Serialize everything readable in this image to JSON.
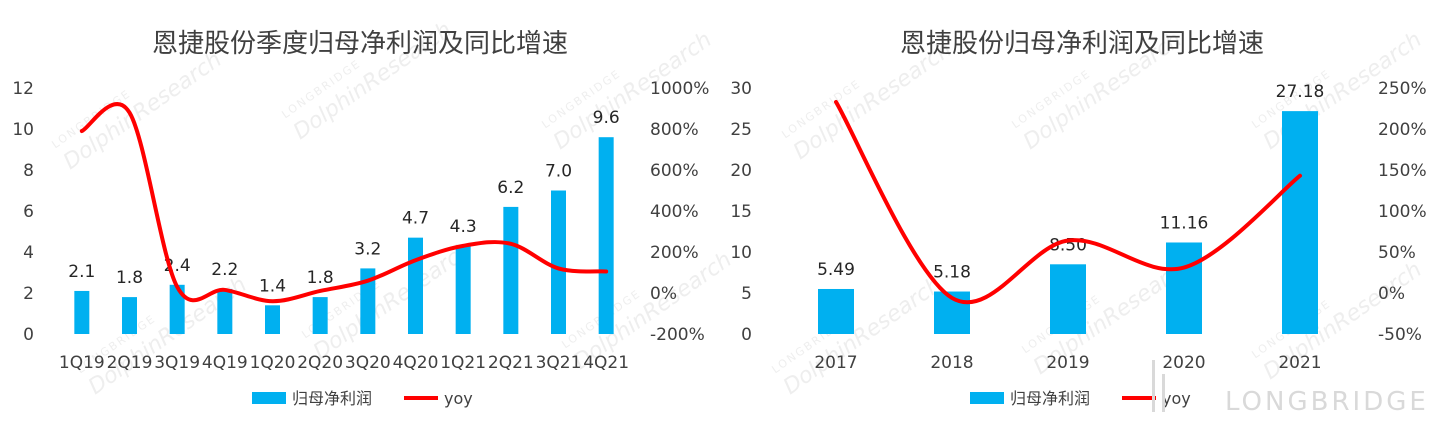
{
  "watermark": {
    "text_small": "LONGBRIDGE",
    "text_large": "DolphinResearch",
    "brand": "LONGBRIDGE"
  },
  "chart_data": [
    {
      "type": "bar",
      "title": "恩捷股份季度归母净利润及同比增速",
      "categories": [
        "1Q19",
        "2Q19",
        "3Q19",
        "4Q19",
        "1Q20",
        "2Q20",
        "3Q20",
        "4Q20",
        "1Q21",
        "2Q21",
        "3Q21",
        "4Q21"
      ],
      "series": [
        {
          "name": "归母净利润",
          "type": "bar",
          "axis": "left",
          "color": "#00B0F0",
          "values": [
            2.1,
            1.8,
            2.4,
            2.2,
            1.4,
            1.8,
            3.2,
            4.7,
            4.3,
            6.2,
            7.0,
            9.6
          ],
          "labels": [
            "2.1",
            "1.8",
            "2.4",
            "2.2",
            "1.4",
            "1.8",
            "3.2",
            "4.7",
            "4.3",
            "6.2",
            "7.0",
            "9.6"
          ]
        },
        {
          "name": "yoy",
          "type": "line",
          "axis": "right",
          "color": "#FF0000",
          "values": [
            790,
            880,
            30,
            15,
            -40,
            10,
            60,
            160,
            230,
            240,
            120,
            105
          ]
        }
      ],
      "ylim_left": [
        0,
        12
      ],
      "yticks_left": [
        "0",
        "2",
        "4",
        "6",
        "8",
        "10",
        "12"
      ],
      "ylim_right": [
        -200,
        1000
      ],
      "yticks_right": [
        "-200%",
        "0%",
        "200%",
        "400%",
        "600%",
        "800%",
        "1000%"
      ],
      "legend": "bottom"
    },
    {
      "type": "bar",
      "title": "恩捷股份归母净利润及同比增速",
      "categories": [
        "2017",
        "2018",
        "2019",
        "2020",
        "2021"
      ],
      "series": [
        {
          "name": "归母净利润",
          "type": "bar",
          "axis": "left",
          "color": "#00B0F0",
          "values": [
            5.49,
            5.18,
            8.5,
            11.16,
            27.18
          ],
          "labels": [
            "5.49",
            "5.18",
            "8.50",
            "11.16",
            "27.18"
          ]
        },
        {
          "name": "yoy",
          "type": "line",
          "axis": "right",
          "color": "#FF0000",
          "values": [
            233,
            -6,
            64,
            31,
            143
          ]
        }
      ],
      "ylim_left": [
        0,
        30
      ],
      "yticks_left": [
        "0",
        "5",
        "10",
        "15",
        "20",
        "25",
        "30"
      ],
      "ylim_right": [
        -50,
        250
      ],
      "yticks_right": [
        "-50%",
        "0%",
        "50%",
        "100%",
        "150%",
        "200%",
        "250%"
      ],
      "legend": "bottom"
    }
  ]
}
